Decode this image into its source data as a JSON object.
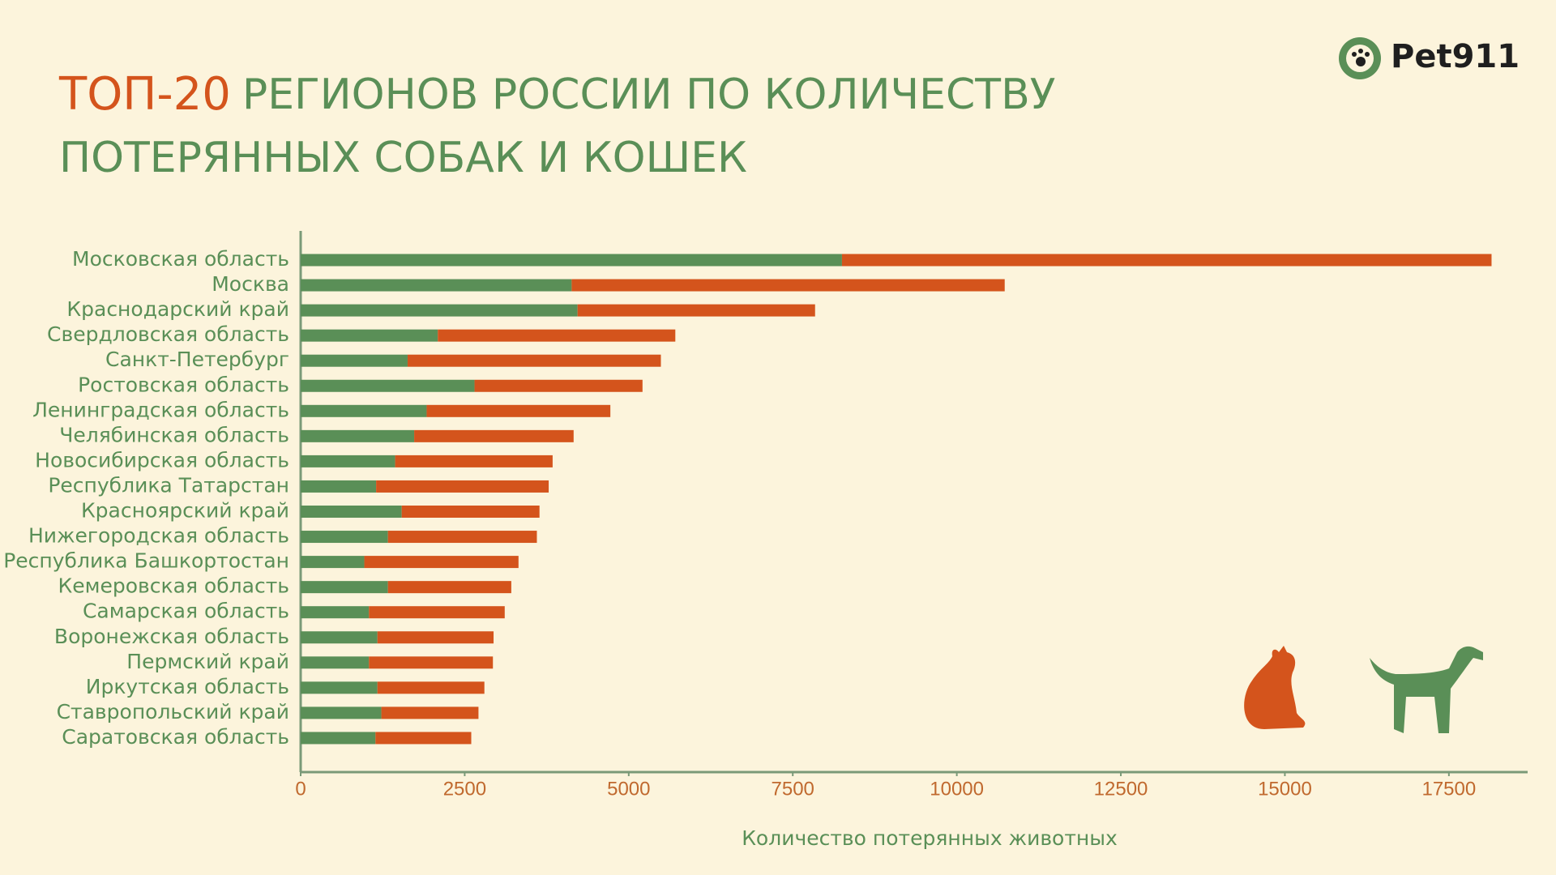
{
  "logo": "Pet911",
  "chart_data": {
    "type": "stacked-barh",
    "title": [
      "ТОП-20",
      "РЕГИОНОВ РОССИИ ПО КОЛИЧЕСТВУ",
      "ПОТЕРЯННЫХ СОБАК И КОШЕК"
    ],
    "xlabel": "Количество потерянных животных",
    "categories": [
      "Московская область",
      "Москва",
      "Краснодарский край",
      "Свердловская область",
      "Санкт-Петербург",
      "Ростовская область",
      "Ленинградская область",
      "Челябинская область",
      "Новосибирская область",
      "Республика Татарстан",
      "Красноярский край",
      "Нижегородская область",
      "Республика Башкортостан",
      "Кемеровская область",
      "Самарская область",
      "Воронежская область",
      "Пермский край",
      "Иркутская область",
      "Ставропольский край",
      "Саратовская область"
    ],
    "series": [
      {
        "color": "#5a8f57",
        "values": [
          8250,
          4130,
          4220,
          2090,
          1630,
          2650,
          1920,
          1730,
          1440,
          1150,
          1540,
          1330,
          970,
          1330,
          1040,
          1170,
          1040,
          1170,
          1230,
          1140
        ]
      },
      {
        "color": "#d4541c",
        "values": [
          9900,
          6600,
          3620,
          3620,
          3860,
          2560,
          2800,
          2430,
          2400,
          2630,
          2100,
          2270,
          2350,
          1880,
          2070,
          1770,
          1890,
          1630,
          1480,
          1460
        ]
      }
    ],
    "xlim": [
      0,
      18700
    ],
    "xticks": [
      0,
      2500,
      5000,
      7500,
      10000,
      12500,
      15000,
      17500
    ]
  }
}
